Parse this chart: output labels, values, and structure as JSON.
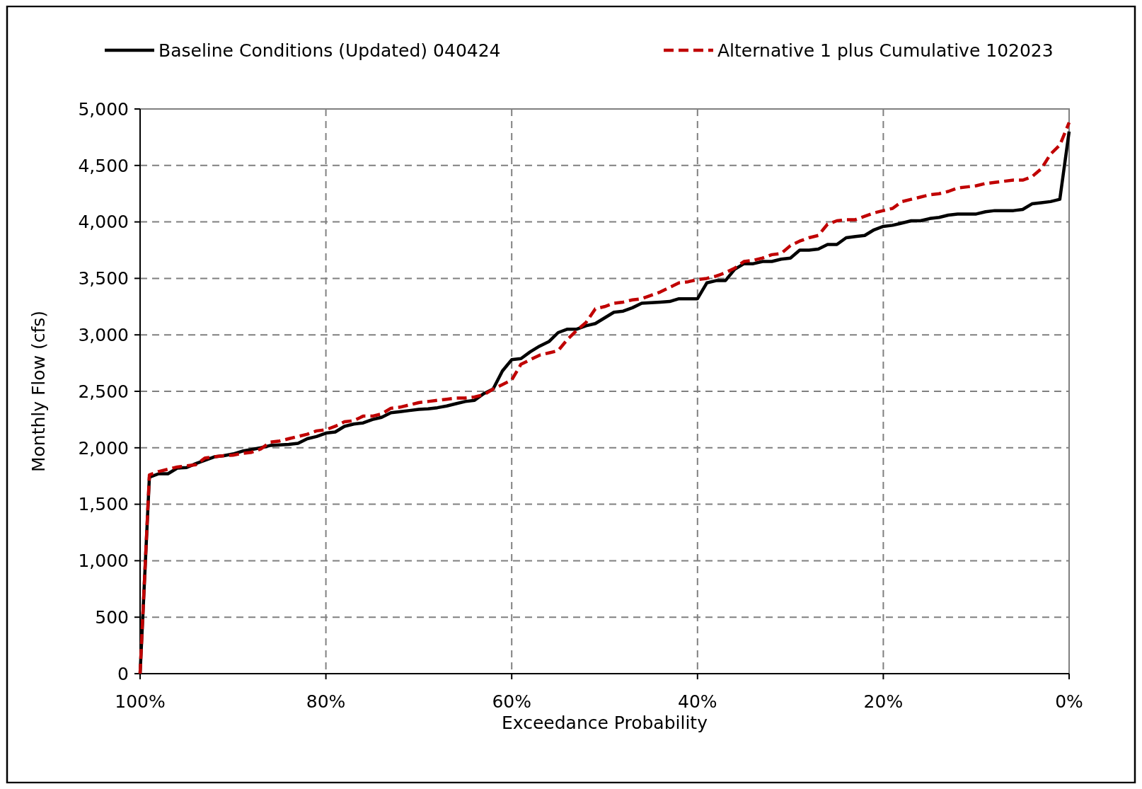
{
  "chart_data": {
    "type": "line",
    "xlabel": "Exceedance Probability",
    "ylabel": "Monthly Flow (cfs)",
    "legend": "top",
    "grid": true,
    "x": [
      100,
      99,
      98,
      97,
      96,
      95,
      94,
      93,
      92,
      91,
      90,
      89,
      88,
      87,
      86,
      85,
      84,
      83,
      82,
      81,
      80,
      79,
      78,
      77,
      76,
      75,
      74,
      73,
      72,
      71,
      70,
      69,
      68,
      67,
      66,
      65,
      64,
      63,
      62,
      61,
      60,
      59,
      58,
      57,
      56,
      55,
      54,
      53,
      52,
      51,
      50,
      49,
      48,
      47,
      46,
      45,
      44,
      43,
      42,
      41,
      40,
      39,
      38,
      37,
      36,
      35,
      34,
      33,
      32,
      31,
      30,
      29,
      28,
      27,
      26,
      25,
      24,
      23,
      22,
      21,
      20,
      19,
      18,
      17,
      16,
      15,
      14,
      13,
      12,
      11,
      10,
      9,
      8,
      7,
      6,
      5,
      4,
      3,
      2,
      1,
      0
    ],
    "xlim": [
      100,
      0
    ],
    "xticks": [
      {
        "value": 100,
        "label": "100%"
      },
      {
        "value": 80,
        "label": "80%"
      },
      {
        "value": 60,
        "label": "60%"
      },
      {
        "value": 40,
        "label": "40%"
      },
      {
        "value": 20,
        "label": "20%"
      },
      {
        "value": 0,
        "label": "0%"
      }
    ],
    "ylim": [
      0,
      5000
    ],
    "yticks": [
      0,
      500,
      {
        "value": 1000,
        "label": "1,000"
      },
      {
        "value": 1500,
        "label": "1,500"
      },
      {
        "value": 2000,
        "label": "2,000"
      },
      {
        "value": 2500,
        "label": "2,500"
      },
      {
        "value": 3000,
        "label": "3,000"
      },
      {
        "value": 3500,
        "label": "3,500"
      },
      {
        "value": 4000,
        "label": "4,000"
      },
      {
        "value": 4500,
        "label": "4,500"
      },
      {
        "value": 5000,
        "label": "5,000"
      }
    ],
    "series": [
      {
        "name": "Baseline Conditions (Updated) 040424",
        "color": "#000000",
        "line_style": "solid",
        "values": [
          0,
          1740,
          1770,
          1770,
          1820,
          1825,
          1860,
          1890,
          1920,
          1930,
          1945,
          1970,
          1985,
          2000,
          2020,
          2025,
          2030,
          2040,
          2080,
          2100,
          2130,
          2140,
          2190,
          2210,
          2220,
          2250,
          2270,
          2310,
          2320,
          2330,
          2340,
          2345,
          2355,
          2370,
          2390,
          2410,
          2420,
          2480,
          2520,
          2680,
          2780,
          2790,
          2850,
          2900,
          2940,
          3020,
          3050,
          3050,
          3080,
          3100,
          3150,
          3200,
          3210,
          3240,
          3280,
          3285,
          3290,
          3295,
          3320,
          3320,
          3320,
          3460,
          3480,
          3480,
          3580,
          3630,
          3630,
          3650,
          3650,
          3670,
          3680,
          3750,
          3750,
          3760,
          3800,
          3800,
          3860,
          3870,
          3880,
          3930,
          3960,
          3970,
          3990,
          4010,
          4010,
          4030,
          4040,
          4060,
          4070,
          4070,
          4070,
          4090,
          4100,
          4100,
          4100,
          4110,
          4160,
          4170,
          4180,
          4200,
          4800
        ]
      },
      {
        "name": "Alternative 1 plus Cumulative 102023",
        "color": "#c00000",
        "line_style": "dashed",
        "values": [
          0,
          1760,
          1790,
          1810,
          1830,
          1840,
          1850,
          1910,
          1920,
          1930,
          1935,
          1950,
          1960,
          1990,
          2050,
          2060,
          2080,
          2100,
          2120,
          2150,
          2160,
          2190,
          2230,
          2240,
          2280,
          2280,
          2300,
          2350,
          2360,
          2380,
          2400,
          2410,
          2420,
          2430,
          2440,
          2440,
          2450,
          2470,
          2520,
          2560,
          2600,
          2740,
          2780,
          2820,
          2840,
          2860,
          2960,
          3040,
          3110,
          3230,
          3250,
          3280,
          3290,
          3310,
          3320,
          3350,
          3380,
          3420,
          3460,
          3470,
          3490,
          3500,
          3520,
          3550,
          3590,
          3650,
          3660,
          3680,
          3710,
          3720,
          3790,
          3830,
          3860,
          3880,
          3980,
          4010,
          4020,
          4020,
          4050,
          4080,
          4100,
          4120,
          4180,
          4200,
          4220,
          4240,
          4250,
          4270,
          4300,
          4310,
          4320,
          4340,
          4350,
          4360,
          4370,
          4370,
          4400,
          4470,
          4600,
          4680,
          4880
        ]
      }
    ]
  }
}
